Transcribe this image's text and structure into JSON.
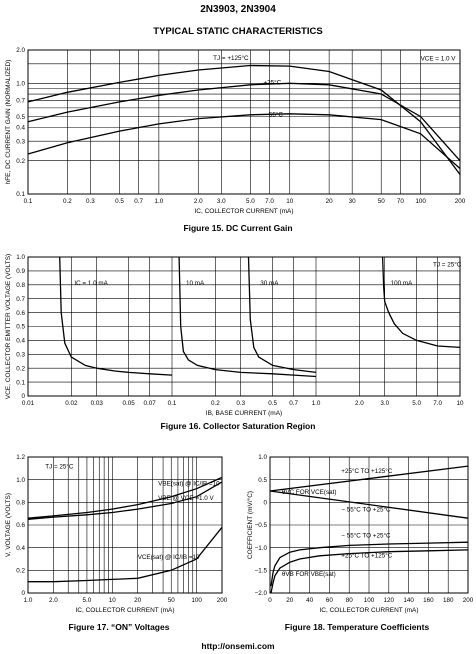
{
  "header": {
    "part_numbers": "2N3903, 2N3904",
    "section_title": "TYPICAL STATIC CHARACTERISTICS"
  },
  "footer": {
    "url": "http://onsemi.com"
  },
  "captions": {
    "fig15": "Figure 15. DC Current Gain",
    "fig16": "Figure 16. Collector Saturation Region",
    "fig17": "Figure 17. “ON” Voltages",
    "fig18": "Figure 18. Temperature Coefficients"
  },
  "chart_data": [
    {
      "id": "fig15",
      "type": "line",
      "xscale": "log",
      "yscale": "log",
      "xlim": [
        0.1,
        200
      ],
      "ylim": [
        0.1,
        2.0
      ],
      "xlabel": "IC, COLLECTOR CURRENT (mA)",
      "ylabel": "hFE, DC CURRENT GAIN (NORMALIZED)",
      "xticks": [
        0.1,
        0.2,
        0.3,
        0.5,
        0.7,
        1.0,
        2.0,
        3.0,
        5.0,
        7.0,
        10,
        20,
        30,
        50,
        70,
        100,
        200
      ],
      "xtick_labels": [
        "0.1",
        "0.2",
        "0.3",
        "0.5",
        "0.7",
        "1.0",
        "2.0",
        "3.0",
        "5.0",
        "7.0",
        "10",
        "20",
        "30",
        "50",
        "70",
        "100",
        "200"
      ],
      "yticks": [
        0.1,
        0.2,
        0.3,
        0.4,
        0.5,
        0.7,
        1.0,
        2.0
      ],
      "ytick_labels": [
        "0.1",
        "0.2",
        "0.3",
        "0.4",
        "0.5",
        "0.7",
        "1.0",
        "2.0"
      ],
      "series": [
        {
          "name": "TJ = +125°C",
          "x": [
            0.1,
            0.2,
            0.5,
            1,
            2,
            5,
            10,
            20,
            50,
            100,
            200
          ],
          "y": [
            0.68,
            0.83,
            1.02,
            1.18,
            1.32,
            1.45,
            1.43,
            1.28,
            0.87,
            0.45,
            0.15
          ]
        },
        {
          "name": "+25°C",
          "x": [
            0.1,
            0.2,
            0.5,
            1,
            2,
            5,
            10,
            20,
            50,
            100,
            200
          ],
          "y": [
            0.45,
            0.55,
            0.68,
            0.78,
            0.87,
            0.97,
            1.0,
            0.97,
            0.8,
            0.5,
            0.2
          ]
        },
        {
          "name": "− 55°C",
          "x": [
            0.1,
            0.2,
            0.5,
            1,
            2,
            5,
            10,
            20,
            50,
            100,
            200
          ],
          "y": [
            0.23,
            0.29,
            0.37,
            0.43,
            0.48,
            0.52,
            0.53,
            0.52,
            0.47,
            0.35,
            0.17
          ]
        }
      ],
      "annotations": [
        "TJ = +125°C",
        "+25°C",
        "− 55°C",
        "VCE = 1.0 V"
      ]
    },
    {
      "id": "fig16",
      "type": "line",
      "xscale": "log",
      "yscale": "linear",
      "xlim": [
        0.01,
        10
      ],
      "ylim": [
        0,
        1.0
      ],
      "xlabel": "IB, BASE CURRENT (mA)",
      "ylabel": "VCE, COLLECTOR EMITTER VOLTAGE (VOLTS)",
      "xticks": [
        0.01,
        0.02,
        0.03,
        0.05,
        0.07,
        0.1,
        0.2,
        0.3,
        0.5,
        0.7,
        1.0,
        2.0,
        3.0,
        5.0,
        7.0,
        10
      ],
      "xtick_labels": [
        "0.01",
        "0.02",
        "0.03",
        "0.05",
        "0.07",
        "0.1",
        "0.2",
        "0.3",
        "0.5",
        "0.7",
        "1.0",
        "2.0",
        "3.0",
        "5.0",
        "7.0",
        "10"
      ],
      "yticks": [
        0,
        0.1,
        0.2,
        0.3,
        0.4,
        0.5,
        0.6,
        0.7,
        0.8,
        0.9,
        1.0
      ],
      "ytick_labels": [
        "0",
        "0.1",
        "0.2",
        "0.3",
        "0.4",
        "0.5",
        "0.6",
        "0.7",
        "0.8",
        "0.9",
        "1.0"
      ],
      "series": [
        {
          "name": "IC = 1.0 mA",
          "x": [
            0.0166,
            0.017,
            0.018,
            0.02,
            0.025,
            0.03,
            0.04,
            0.05,
            0.07,
            0.1
          ],
          "y": [
            1.0,
            0.6,
            0.38,
            0.28,
            0.22,
            0.2,
            0.18,
            0.17,
            0.16,
            0.15
          ]
        },
        {
          "name": "10 mA",
          "x": [
            0.112,
            0.115,
            0.12,
            0.13,
            0.15,
            0.2,
            0.3,
            0.5,
            0.7,
            1.0
          ],
          "y": [
            1.0,
            0.5,
            0.32,
            0.26,
            0.22,
            0.19,
            0.17,
            0.16,
            0.15,
            0.14
          ]
        },
        {
          "name": "30 mA",
          "x": [
            0.34,
            0.35,
            0.37,
            0.4,
            0.5,
            0.7,
            1.0
          ],
          "y": [
            1.0,
            0.55,
            0.35,
            0.28,
            0.22,
            0.19,
            0.17
          ]
        },
        {
          "name": "100 mA",
          "x": [
            2.9,
            2.95,
            3.0,
            3.2,
            3.5,
            4.0,
            5.0,
            7.0,
            10.0
          ],
          "y": [
            1.0,
            0.78,
            0.68,
            0.6,
            0.52,
            0.45,
            0.4,
            0.36,
            0.35
          ]
        }
      ],
      "annotations": [
        "IC = 1.0 mA",
        "10 mA",
        "30 mA",
        "100 mA",
        "TJ = 25°C"
      ]
    },
    {
      "id": "fig17",
      "type": "line",
      "xscale": "log",
      "yscale": "linear",
      "xlim": [
        1.0,
        200
      ],
      "ylim": [
        0,
        1.2
      ],
      "xlabel": "IC, COLLECTOR CURRENT (mA)",
      "ylabel": "V, VOLTAGE (VOLTS)",
      "xticks": [
        1,
        2,
        5,
        10,
        20,
        50,
        100,
        200
      ],
      "xtick_labels": [
        "1.0",
        "2.0",
        "5.0",
        "10",
        "20",
        "50",
        "100",
        "200"
      ],
      "yticks": [
        0,
        0.2,
        0.4,
        0.6,
        0.8,
        1.0,
        1.2
      ],
      "ytick_labels": [
        "0",
        "0.2",
        "0.4",
        "0.6",
        "0.8",
        "1.0",
        "1.2"
      ],
      "series": [
        {
          "name": "VBE(sat) @ IC/IB =10",
          "x": [
            1,
            2,
            5,
            10,
            20,
            50,
            100,
            200
          ],
          "y": [
            0.66,
            0.68,
            0.71,
            0.74,
            0.78,
            0.85,
            0.92,
            1.02
          ]
        },
        {
          "name": "VBE @ VCE =1.0 V",
          "x": [
            1,
            2,
            5,
            10,
            20,
            50,
            100,
            200
          ],
          "y": [
            0.65,
            0.67,
            0.69,
            0.71,
            0.74,
            0.79,
            0.85,
            0.98
          ]
        },
        {
          "name": "VCE(sat) @ IC/IB =10",
          "x": [
            1,
            2,
            5,
            10,
            20,
            50,
            100,
            200
          ],
          "y": [
            0.1,
            0.1,
            0.11,
            0.12,
            0.13,
            0.2,
            0.3,
            0.58
          ]
        }
      ],
      "annotations": [
        "TJ = 25°C",
        "VBE(sat) @ IC/IB =10",
        "VBE @ VCE =1.0 V",
        "VCE(sat) @ IC/IB =10"
      ]
    },
    {
      "id": "fig18",
      "type": "line",
      "xscale": "linear",
      "yscale": "linear",
      "xlim": [
        0,
        200
      ],
      "ylim": [
        -2.0,
        1.0
      ],
      "xlabel": "IC, COLLECTOR CURRENT (mA)",
      "ylabel": "COEFFICIENT (mV/°C)",
      "xticks": [
        0,
        20,
        40,
        60,
        80,
        100,
        120,
        140,
        160,
        180,
        200
      ],
      "xtick_labels": [
        "0",
        "20",
        "40",
        "60",
        "80",
        "100",
        "120",
        "140",
        "160",
        "180",
        "200"
      ],
      "yticks": [
        -2.0,
        -1.5,
        -1.0,
        -0.5,
        0,
        0.5,
        1.0
      ],
      "ytick_labels": [
        "−2.0",
        "−1.5",
        "−1.0",
        "−0.5",
        "0",
        "0.5",
        "1.0"
      ],
      "series": [
        {
          "name": "θVC +25°C TO +125°C",
          "x": [
            0,
            200
          ],
          "y": [
            0.25,
            0.8
          ]
        },
        {
          "name": "θVC − 55°C TO +25°C",
          "x": [
            0,
            200
          ],
          "y": [
            0.25,
            -0.35
          ]
        },
        {
          "name": "θVB − 55°C TO +25°C",
          "x": [
            1,
            3,
            5,
            10,
            20,
            30,
            50,
            80,
            120,
            160,
            200
          ],
          "y": [
            -1.85,
            -1.55,
            -1.4,
            -1.22,
            -1.1,
            -1.05,
            -1.0,
            -0.95,
            -0.92,
            -0.9,
            -0.88
          ]
        },
        {
          "name": "θVB +25°C TO +125°C",
          "x": [
            1,
            3,
            5,
            10,
            20,
            30,
            50,
            80,
            120,
            160,
            200
          ],
          "y": [
            -2.0,
            -1.78,
            -1.62,
            -1.45,
            -1.32,
            -1.25,
            -1.18,
            -1.13,
            -1.09,
            -1.07,
            -1.05
          ]
        }
      ],
      "annotations": [
        "+25°C TO +125°C",
        "θVC FOR VCE(sat)",
        "− 55°C TO +25°C",
        "− 55°C TO +25°C",
        "+25°C TO +125°C",
        "θVB FOR VBE(sat)"
      ]
    }
  ]
}
